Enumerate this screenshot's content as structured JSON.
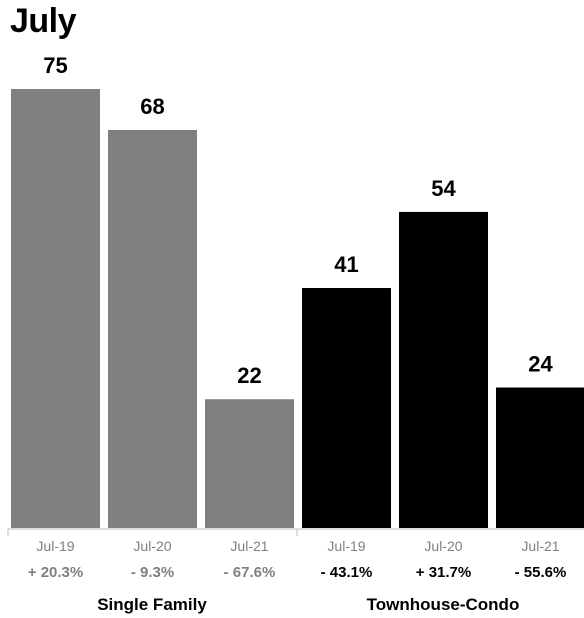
{
  "chart_data": {
    "type": "bar",
    "title": "July",
    "ylim": [
      0,
      80
    ],
    "groups": [
      {
        "name": "Single Family",
        "color": "#808080",
        "bars": [
          {
            "category": "Jul-19",
            "value": 75,
            "change": "+ 20.3%"
          },
          {
            "category": "Jul-20",
            "value": 68,
            "change": "- 9.3%"
          },
          {
            "category": "Jul-21",
            "value": 22,
            "change": "- 67.6%"
          }
        ]
      },
      {
        "name": "Townhouse-Condo",
        "color": "#000000",
        "bars": [
          {
            "category": "Jul-19",
            "value": 41,
            "change": "- 43.1%"
          },
          {
            "category": "Jul-20",
            "value": 54,
            "change": "+ 31.7%"
          },
          {
            "category": "Jul-21",
            "value": 24,
            "change": "- 55.6%"
          }
        ]
      }
    ],
    "colors": {
      "category_label": "#808080",
      "change_single_family": "#808080",
      "change_townhouse": "#000000",
      "value_label": "#000000",
      "axis": "#bbbbbb"
    }
  }
}
